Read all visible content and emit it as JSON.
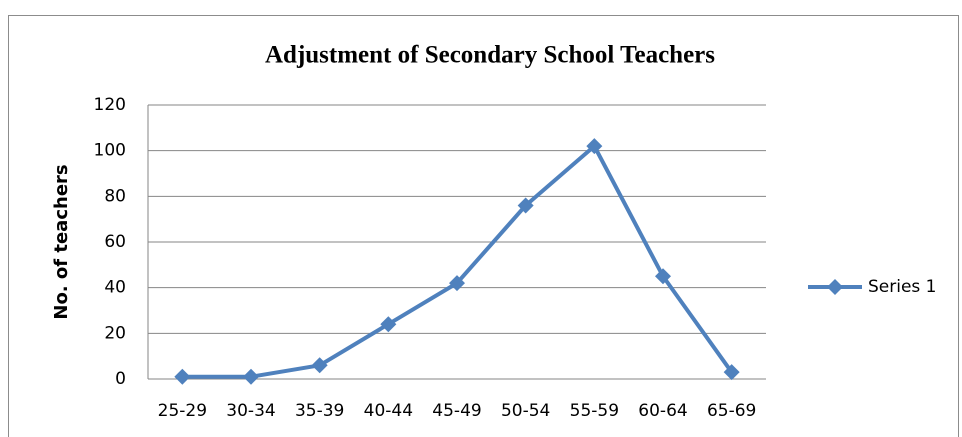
{
  "chart_data": {
    "type": "line",
    "title": "Adjustment of Secondary School Teachers",
    "y_label": "No. of teachers",
    "categories": [
      "25-29",
      "30-34",
      "35-39",
      "40-44",
      "45-49",
      "50-54",
      "55-59",
      "60-64",
      "65-69"
    ],
    "series": [
      {
        "name": "Series 1",
        "color": "#4f81bd",
        "values": [
          1,
          1,
          6,
          24,
          42,
          76,
          102,
          45,
          3
        ]
      }
    ],
    "ylim": [
      0,
      120
    ],
    "yticks": [
      0,
      20,
      40,
      60,
      80,
      100,
      120
    ],
    "grid": true,
    "legend": "right"
  }
}
